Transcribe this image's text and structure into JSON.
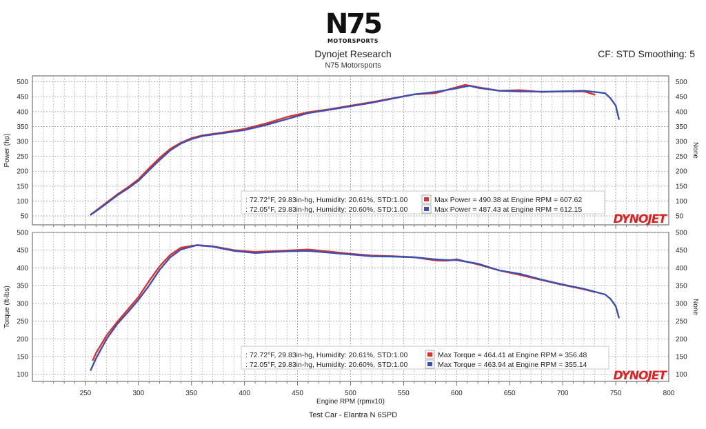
{
  "header": {
    "logo_text": "N75",
    "logo_sub": "MOTORSPORTS",
    "title": "Dynojet Research",
    "subtitle": "N75 Motorsports",
    "cf": "CF: STD Smoothing: 5"
  },
  "footer": {
    "text": "Test Car - Elantra N 6SPD"
  },
  "colors": {
    "run1": "#e03030",
    "run2": "#3a4fb0",
    "grid": "#9a9a9a",
    "brand": "#e02020"
  },
  "chart_data": [
    {
      "type": "line",
      "panel": "power",
      "xlabel": "Engine RPM (rpmx10)",
      "ylabel": "Power (hp)",
      "ylabel_right": "None",
      "xlim": [
        200,
        800
      ],
      "ylim": [
        20,
        520
      ],
      "yticks": [
        50,
        100,
        150,
        200,
        250,
        300,
        350,
        400,
        450,
        500
      ],
      "brand": "DYNOJET",
      "series": [
        {
          "name": "72.72°F, 29.83in-hg, Humidity: 20.61%, STD:1.00",
          "legend_prefix": ": 72.72°F, 29.83in-hg, Humidity: 20.61%, STD:1.00",
          "max_label": "Max Power = 490.38 at Engine RPM = 607.62",
          "color": "run1",
          "x": [
            256,
            260,
            270,
            280,
            290,
            300,
            310,
            320,
            330,
            340,
            350,
            360,
            370,
            380,
            390,
            400,
            420,
            440,
            460,
            480,
            500,
            520,
            540,
            560,
            580,
            600,
            608,
            620,
            640,
            660,
            680,
            700,
            720,
            730
          ],
          "y": [
            57,
            68,
            95,
            122,
            146,
            173,
            210,
            245,
            275,
            296,
            311,
            320,
            325,
            330,
            336,
            342,
            360,
            382,
            398,
            408,
            420,
            432,
            445,
            458,
            462,
            482,
            490,
            482,
            470,
            472,
            466,
            468,
            468,
            457
          ]
        },
        {
          "name": "72.05°F, 29.83in-hg, Humidity: 20.60%, STD:1.00",
          "legend_prefix": ": 72.05°F, 29.83in-hg, Humidity: 20.60%, STD:1.00",
          "max_label": "Max Power = 487.43 at Engine RPM = 612.15",
          "color": "run2",
          "x": [
            255,
            260,
            270,
            280,
            290,
            300,
            310,
            320,
            330,
            340,
            350,
            360,
            370,
            380,
            390,
            400,
            420,
            440,
            460,
            480,
            500,
            520,
            540,
            560,
            580,
            600,
            612,
            620,
            640,
            660,
            680,
            700,
            720,
            740,
            745,
            750,
            753
          ],
          "y": [
            54,
            66,
            92,
            119,
            142,
            168,
            203,
            238,
            270,
            293,
            308,
            318,
            323,
            328,
            333,
            338,
            355,
            375,
            395,
            406,
            418,
            430,
            444,
            458,
            466,
            478,
            487,
            480,
            470,
            468,
            467,
            468,
            470,
            462,
            445,
            420,
            375
          ]
        }
      ]
    },
    {
      "type": "line",
      "panel": "torque",
      "xlabel": "Engine RPM (rpmx10)",
      "ylabel": "Torque (ft-lbs)",
      "ylabel_right": "None",
      "xlim": [
        200,
        800
      ],
      "ylim": [
        80,
        500
      ],
      "yticks": [
        100,
        150,
        200,
        250,
        300,
        350,
        400,
        450,
        500
      ],
      "xticks": [
        250,
        300,
        350,
        400,
        450,
        500,
        550,
        600,
        650,
        700,
        750,
        800
      ],
      "brand": "DYNOJET",
      "series": [
        {
          "name": "72.72°F, 29.83in-hg, Humidity: 20.61%, STD:1.00",
          "legend_prefix": ": 72.72°F, 29.83in-hg, Humidity: 20.61%, STD:1.00",
          "max_label": "Max Torque = 464.41 at Engine RPM = 356.48",
          "color": "run1",
          "x": [
            257,
            260,
            270,
            280,
            290,
            300,
            310,
            320,
            330,
            340,
            350,
            356,
            370,
            390,
            410,
            440,
            460,
            480,
            500,
            520,
            540,
            560,
            580,
            590,
            600,
            620,
            640,
            660,
            680,
            700,
            720,
            730
          ],
          "y": [
            140,
            160,
            210,
            248,
            283,
            318,
            363,
            405,
            437,
            457,
            462,
            464,
            461,
            450,
            445,
            449,
            452,
            446,
            440,
            435,
            433,
            430,
            421,
            420,
            424,
            410,
            393,
            380,
            366,
            352,
            340,
            332
          ]
        },
        {
          "name": "72.05°F, 29.83in-hg, Humidity: 20.60%, STD:1.00",
          "legend_prefix": ": 72.05°F, 29.83in-hg, Humidity: 20.60%, STD:1.00",
          "max_label": "Max Torque = 463.94 at Engine RPM = 355.14",
          "color": "run2",
          "x": [
            255,
            260,
            270,
            280,
            290,
            300,
            310,
            320,
            330,
            340,
            350,
            355,
            370,
            390,
            410,
            440,
            460,
            480,
            500,
            520,
            540,
            560,
            580,
            590,
            600,
            620,
            640,
            660,
            680,
            700,
            720,
            740,
            745,
            750,
            753
          ],
          "y": [
            112,
            145,
            200,
            242,
            275,
            310,
            350,
            395,
            430,
            452,
            460,
            464,
            460,
            448,
            442,
            447,
            448,
            443,
            438,
            433,
            432,
            430,
            424,
            422,
            422,
            412,
            393,
            383,
            367,
            353,
            341,
            325,
            313,
            292,
            260
          ]
        }
      ]
    }
  ]
}
